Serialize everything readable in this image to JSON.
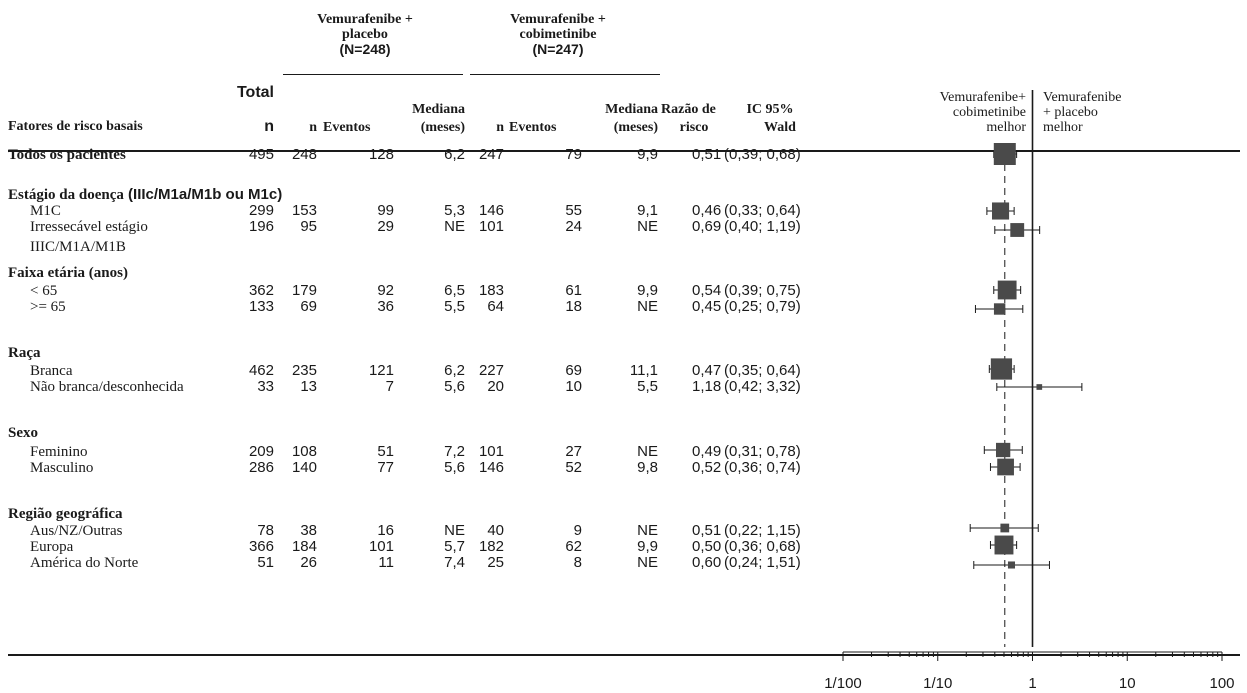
{
  "header": {
    "group1": "Vemurafenibe +\nplacebo",
    "group1_n": "(N=248)",
    "group2": "Vemurafenibe +\ncobimetinibe",
    "group2_n": "(N=247)",
    "risk_factors": "Fatores de risco basais",
    "total": "Total",
    "total_n": "n",
    "n": "n",
    "events": "Eventos",
    "median_top": "Mediana",
    "median_bottom": "(meses)",
    "hr_top": "Razão de",
    "hr_bottom": "risco",
    "ci_top": "IC 95%",
    "ci_bottom": "Wald",
    "favors_left": "Vemurafenibe+\ncobimetinibe\nmelhor",
    "favors_right": "Vemurafenibe\n+ placebo\nmelhor"
  },
  "rows": [
    {
      "label": "Todos os pacientes",
      "kind": "group",
      "total": "495",
      "n1": "248",
      "e1": "128",
      "m1": "6,2",
      "n2": "247",
      "e2": "79",
      "m2": "9,9",
      "hr": "0,51",
      "ci": "(0,39; 0,68)"
    },
    {
      "label": "Estágio da doença",
      "label_suffix": " (IIIc/M1a/M1b ou M1c)",
      "kind": "header"
    },
    {
      "label": "M1C",
      "kind": "sub",
      "total": "299",
      "n1": "153",
      "e1": "99",
      "m1": "5,3",
      "n2": "146",
      "e2": "55",
      "m2": "9,1",
      "hr": "0,46",
      "ci": "(0,33; 0,64)"
    },
    {
      "label": "Irressecável estágio",
      "label2": "IIIC/M1A/M1B",
      "kind": "sub",
      "total": "196",
      "n1": "95",
      "e1": "29",
      "m1": "NE",
      "n2": "101",
      "e2": "24",
      "m2": "NE",
      "hr": "0,69",
      "ci": "(0,40; 1,19)"
    },
    {
      "label": "Faixa etária (anos)",
      "kind": "header"
    },
    {
      "label": "< 65",
      "kind": "sub",
      "total": "362",
      "n1": "179",
      "e1": "92",
      "m1": "6,5",
      "n2": "183",
      "e2": "61",
      "m2": "9,9",
      "hr": "0,54",
      "ci": "(0,39; 0,75)"
    },
    {
      "label": ">= 65",
      "kind": "sub",
      "total": "133",
      "n1": "69",
      "e1": "36",
      "m1": "5,5",
      "n2": "64",
      "e2": "18",
      "m2": "NE",
      "hr": "0,45",
      "ci": "(0,25; 0,79)"
    },
    {
      "label": "Raça",
      "kind": "header"
    },
    {
      "label": "Branca",
      "kind": "sub",
      "total": "462",
      "n1": "235",
      "e1": "121",
      "m1": "6,2",
      "n2": "227",
      "e2": "69",
      "m2": "11,1",
      "hr": "0,47",
      "ci": "(0,35; 0,64)"
    },
    {
      "label": "Não branca/desconhecida",
      "kind": "sub",
      "total": "33",
      "n1": "13",
      "e1": "7",
      "m1": "5,6",
      "n2": "20",
      "e2": "10",
      "m2": "5,5",
      "hr": "1,18",
      "ci": "(0,42; 3,32)"
    },
    {
      "label": "Sexo",
      "kind": "header"
    },
    {
      "label": "Feminino",
      "kind": "sub",
      "total": "209",
      "n1": "108",
      "e1": "51",
      "m1": "7,2",
      "n2": "101",
      "e2": "27",
      "m2": "NE",
      "hr": "0,49",
      "ci": "(0,31; 0,78)"
    },
    {
      "label": "Masculino",
      "kind": "sub",
      "total": "286",
      "n1": "140",
      "e1": "77",
      "m1": "5,6",
      "n2": "146",
      "e2": "52",
      "m2": "9,8",
      "hr": "0,52",
      "ci": "(0,36; 0,74)"
    },
    {
      "label": "Região geográfica",
      "kind": "header"
    },
    {
      "label": "Aus/NZ/Outras",
      "kind": "sub",
      "total": "78",
      "n1": "38",
      "e1": "16",
      "m1": "NE",
      "n2": "40",
      "e2": "9",
      "m2": "NE",
      "hr": "0,51",
      "ci": "(0,22; 1,15)"
    },
    {
      "label": "Europa",
      "kind": "sub",
      "total": "366",
      "n1": "184",
      "e1": "101",
      "m1": "5,7",
      "n2": "182",
      "e2": "62",
      "m2": "9,9",
      "hr": "0,50",
      "ci": "(0,36; 0,68)"
    },
    {
      "label": "América do Norte",
      "kind": "sub",
      "total": "51",
      "n1": "26",
      "e1": "11",
      "m1": "7,4",
      "n2": "25",
      "e2": "8",
      "m2": "NE",
      "hr": "0,60",
      "ci": "(0,24; 1,51)"
    }
  ],
  "chart_data": {
    "type": "forest",
    "x_scale": "log",
    "xlim": [
      0.01,
      100
    ],
    "x_ticks": [
      "1/100",
      "1/10",
      "1",
      "10",
      "100"
    ],
    "x_tick_values": [
      0.01,
      0.1,
      1,
      10,
      100
    ],
    "reference_line": 1,
    "overall_line": 0.51,
    "colors": {
      "marker": "#4a4a4a",
      "line": "#1a1a1a"
    },
    "points": [
      {
        "label": "Todos os pacientes",
        "hr": 0.51,
        "lo": 0.39,
        "hi": 0.68,
        "n": 495
      },
      {
        "label": "M1C",
        "hr": 0.46,
        "lo": 0.33,
        "hi": 0.64,
        "n": 299
      },
      {
        "label": "Irressecável estágio IIIC/M1A/M1B",
        "hr": 0.69,
        "lo": 0.4,
        "hi": 1.19,
        "n": 196
      },
      {
        "label": "< 65",
        "hr": 0.54,
        "lo": 0.39,
        "hi": 0.75,
        "n": 362
      },
      {
        "label": ">= 65",
        "hr": 0.45,
        "lo": 0.25,
        "hi": 0.79,
        "n": 133
      },
      {
        "label": "Branca",
        "hr": 0.47,
        "lo": 0.35,
        "hi": 0.64,
        "n": 462
      },
      {
        "label": "Não branca/desconhecida",
        "hr": 1.18,
        "lo": 0.42,
        "hi": 3.32,
        "n": 33
      },
      {
        "label": "Feminino",
        "hr": 0.49,
        "lo": 0.31,
        "hi": 0.78,
        "n": 209
      },
      {
        "label": "Masculino",
        "hr": 0.52,
        "lo": 0.36,
        "hi": 0.74,
        "n": 286
      },
      {
        "label": "Aus/NZ/Outras",
        "hr": 0.51,
        "lo": 0.22,
        "hi": 1.15,
        "n": 78
      },
      {
        "label": "Europa",
        "hr": 0.5,
        "lo": 0.36,
        "hi": 0.68,
        "n": 366
      },
      {
        "label": "América do Norte",
        "hr": 0.6,
        "lo": 0.24,
        "hi": 1.51,
        "n": 51
      }
    ]
  }
}
